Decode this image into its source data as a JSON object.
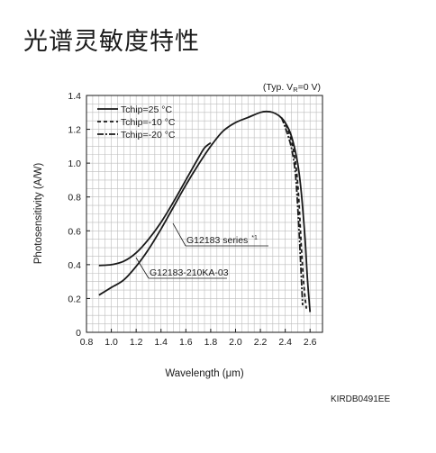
{
  "heading": "光谱灵敏度特性",
  "doc_code": "KIRDB0491EE",
  "chart_data": {
    "type": "line",
    "title": "",
    "xlabel": "Wavelength (μm)",
    "ylabel": "Photosensitivity (A/W)",
    "condition": "(Typ. VR=0 V)",
    "condition_parts": {
      "pre": "(Typ. V",
      "sub": "R",
      "post": "=0 V)"
    },
    "xlim": [
      0.8,
      2.7
    ],
    "ylim": [
      0,
      1.4
    ],
    "x_ticks": [
      0.8,
      1.0,
      1.2,
      1.4,
      1.6,
      1.8,
      2.0,
      2.2,
      2.4,
      2.6
    ],
    "x_tick_labels": [
      "0.8",
      "1.0",
      "1.2",
      "1.4",
      "1.6",
      "1.8",
      "2.0",
      "2.2",
      "2.4",
      "2.6"
    ],
    "y_ticks": [
      0,
      0.2,
      0.4,
      0.6,
      0.8,
      1.0,
      1.2,
      1.4
    ],
    "y_tick_labels": [
      "0",
      "0.2",
      "0.4",
      "0.6",
      "0.8",
      "1.0",
      "1.2",
      "1.4"
    ],
    "grid": true,
    "legend_position": "top-left",
    "series": [
      {
        "name": "Tchip=25 °C",
        "style": "solid",
        "x": [
          0.9,
          1.0,
          1.1,
          1.2,
          1.3,
          1.4,
          1.5,
          1.6,
          1.7,
          1.8,
          1.9,
          2.0,
          2.1,
          2.2,
          2.25,
          2.3,
          2.35,
          2.4,
          2.45,
          2.5,
          2.53,
          2.56,
          2.58,
          2.6
        ],
        "y": [
          0.22,
          0.265,
          0.31,
          0.39,
          0.49,
          0.61,
          0.74,
          0.87,
          0.99,
          1.1,
          1.19,
          1.24,
          1.27,
          1.3,
          1.305,
          1.3,
          1.28,
          1.24,
          1.16,
          1.0,
          0.82,
          0.55,
          0.3,
          0.12
        ]
      },
      {
        "name": "Tchip=-10 °C",
        "style": "dashed",
        "x": [
          2.38,
          2.42,
          2.46,
          2.49,
          2.51,
          2.53,
          2.55,
          2.57
        ],
        "y": [
          1.26,
          1.2,
          1.1,
          0.96,
          0.78,
          0.5,
          0.28,
          0.14
        ]
      },
      {
        "name": "Tchip=-20 °C",
        "style": "dashdot",
        "x": [
          2.37,
          2.41,
          2.45,
          2.48,
          2.5,
          2.52,
          2.54
        ],
        "y": [
          1.27,
          1.19,
          1.09,
          0.95,
          0.75,
          0.47,
          0.16
        ]
      },
      {
        "name": "G12183 series",
        "style": "solid",
        "x": [
          0.9,
          1.0,
          1.1,
          1.2,
          1.3,
          1.4,
          1.5,
          1.6,
          1.7,
          1.75,
          1.8
        ],
        "y": [
          0.395,
          0.4,
          0.42,
          0.47,
          0.55,
          0.65,
          0.77,
          0.9,
          1.03,
          1.09,
          1.12
        ]
      }
    ],
    "annotations": [
      {
        "text": "G12183 series",
        "mark": "*1",
        "target_x": 1.62,
        "target_y": 0.64
      },
      {
        "text": "G12183-210KA-03",
        "target_x": 1.22,
        "target_y": 0.43
      }
    ]
  }
}
